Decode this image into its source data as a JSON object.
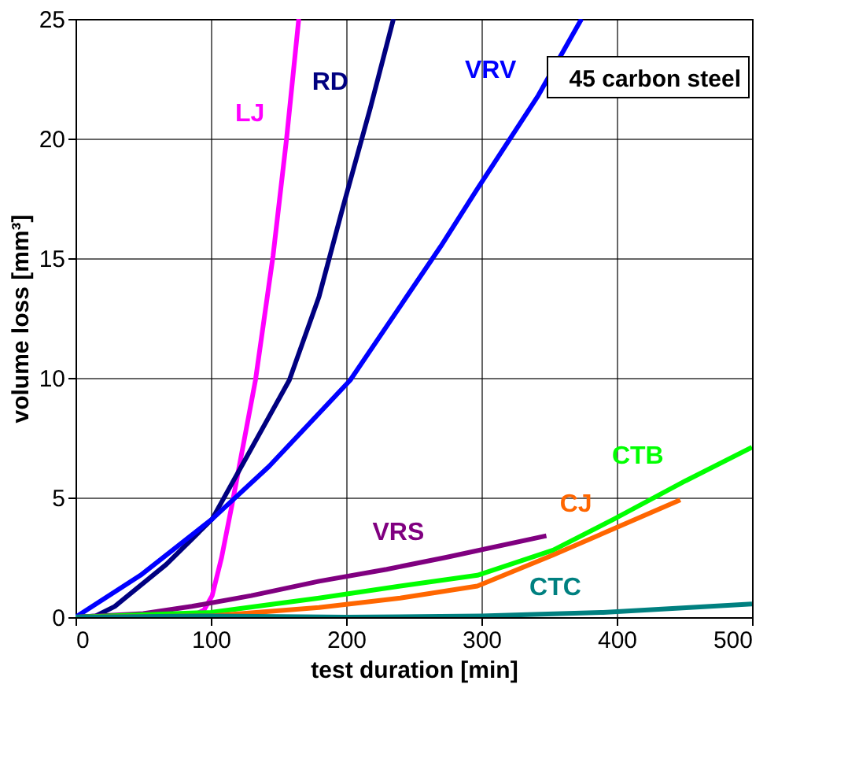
{
  "chart_data": {
    "type": "line",
    "xlabel": "test duration [min]",
    "ylabel": "volume loss [mm³]",
    "xlim": [
      0,
      500
    ],
    "ylim": [
      0,
      25
    ],
    "xticks": [
      0,
      100,
      200,
      300,
      400,
      500
    ],
    "yticks": [
      0,
      5,
      10,
      15,
      20,
      25
    ],
    "grid": true,
    "marker": "none",
    "line_style": "solid",
    "annotations": [
      "45 carbon steel"
    ],
    "series": [
      {
        "name": "LJ",
        "color": "#ff00ff",
        "x": [
          0,
          50,
          85,
          95,
          101,
          108,
          116,
          125,
          133,
          146,
          156,
          165
        ],
        "values": [
          0,
          0,
          0,
          0.3,
          0.9,
          2.5,
          4.8,
          7.5,
          9.9,
          15.1,
          20,
          25
        ]
      },
      {
        "name": "RD",
        "color": "#000080",
        "x": [
          0,
          15,
          29,
          67,
          101,
          158,
          180,
          197,
          218,
          235
        ],
        "values": [
          0,
          0.05,
          0.45,
          2.2,
          4.1,
          9.9,
          13.4,
          17,
          21.3,
          25
        ]
      },
      {
        "name": "VRV",
        "color": "#0000ff",
        "x": [
          0,
          48,
          101,
          143,
          203,
          270,
          297,
          342,
          374
        ],
        "values": [
          0,
          1.75,
          4.1,
          6.3,
          9.9,
          15.5,
          17.9,
          21.8,
          25
        ]
      },
      {
        "name": "VRS",
        "color": "#800080",
        "x": [
          0,
          50,
          86,
          130,
          180,
          230,
          274,
          348
        ],
        "values": [
          0,
          0.15,
          0.45,
          0.9,
          1.5,
          2.0,
          2.5,
          3.4
        ]
      },
      {
        "name": "CTB",
        "color": "#00ff00",
        "x": [
          0,
          100,
          180,
          240,
          297,
          353,
          398,
          451,
          500
        ],
        "values": [
          0,
          0.2,
          0.8,
          1.3,
          1.75,
          2.8,
          4.1,
          5.7,
          7.1
        ]
      },
      {
        "name": "CJ",
        "color": "#ff6600",
        "x": [
          0,
          100,
          180,
          240,
          297,
          353,
          398,
          447
        ],
        "values": [
          0,
          0.05,
          0.4,
          0.8,
          1.3,
          2.6,
          3.7,
          4.9
        ]
      },
      {
        "name": "CTC",
        "color": "#008080",
        "x": [
          0,
          100,
          200,
          300,
          390,
          500
        ],
        "values": [
          0,
          0.05,
          0,
          0.05,
          0.2,
          0.55
        ]
      }
    ]
  }
}
